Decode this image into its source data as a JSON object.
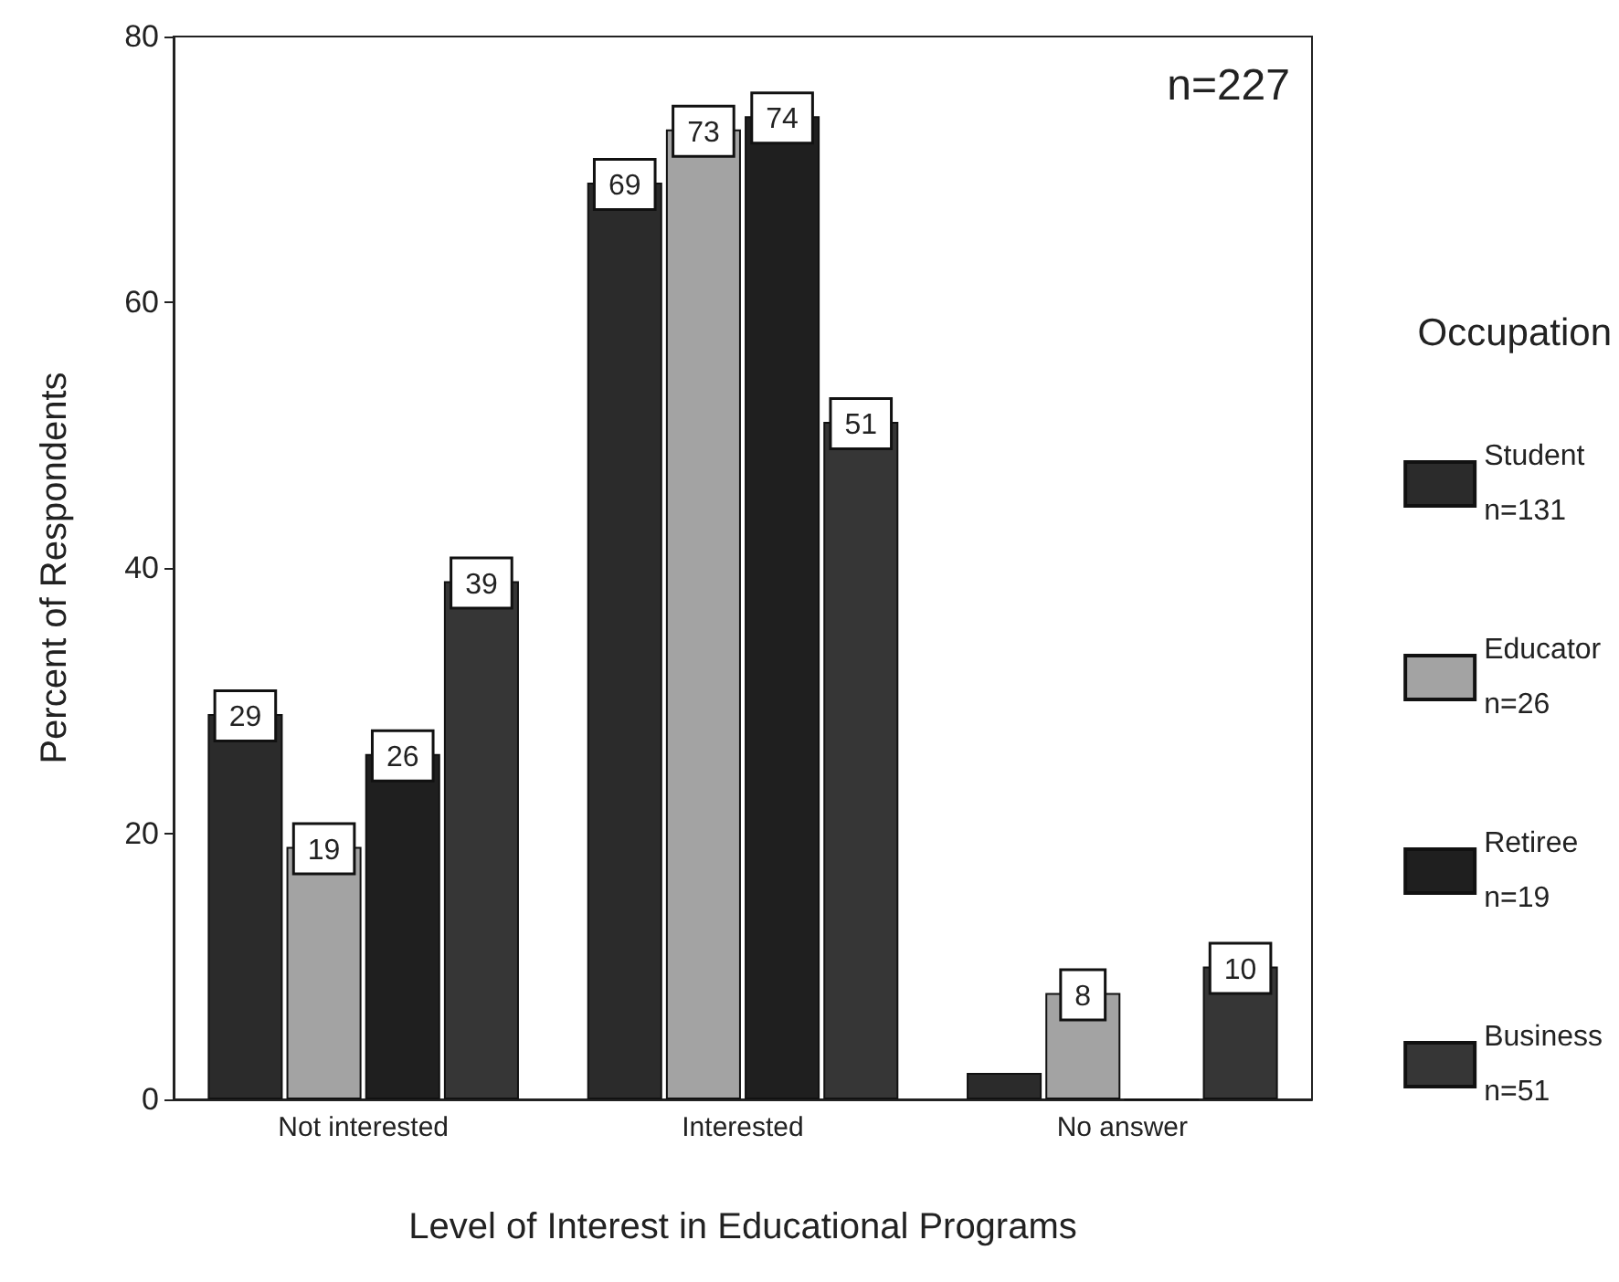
{
  "chart_data": {
    "type": "bar",
    "xlabel": "Level of Interest in Educational Programs",
    "ylabel": "Percent of Respondents",
    "legend_title": "Occupation",
    "annotations": [
      "n=227"
    ],
    "categories": [
      "Not interested",
      "Interested",
      "No answer"
    ],
    "series": [
      {
        "name": "Student\nn=131",
        "color": "#2b2b2b",
        "values": [
          29,
          69,
          2
        ],
        "value_labels": [
          "29",
          "69",
          null
        ]
      },
      {
        "name": "Educator\nn=26",
        "color": "#a3a3a3",
        "values": [
          19,
          73,
          8
        ],
        "value_labels": [
          "19",
          "73",
          "8"
        ]
      },
      {
        "name": "Retiree\nn=19",
        "color": "#1f1f1f",
        "values": [
          26,
          74,
          0
        ],
        "value_labels": [
          "26",
          "74",
          null
        ]
      },
      {
        "name": "Business\nn=51",
        "color": "#363636",
        "values": [
          39,
          51,
          10
        ],
        "value_labels": [
          "39",
          "51",
          "10"
        ]
      }
    ],
    "ylim": [
      0,
      80
    ],
    "yticks": [
      0,
      20,
      40,
      60,
      80
    ],
    "grid": false,
    "legend": "right"
  }
}
